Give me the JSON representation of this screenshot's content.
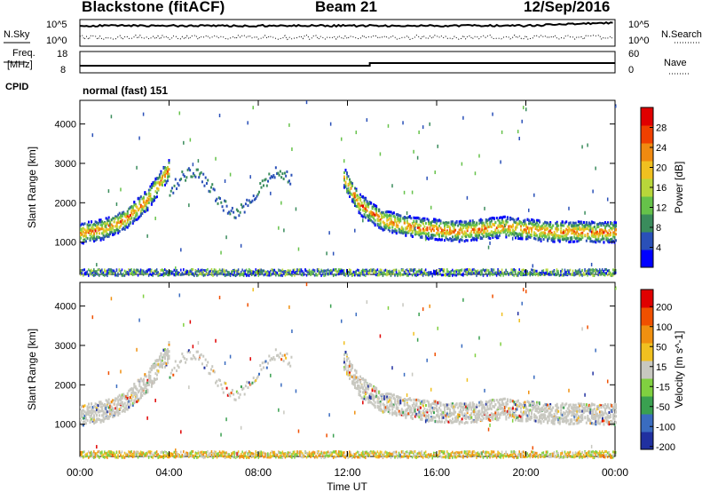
{
  "header": {
    "station": "Blackstone (fitACF)",
    "beam": "Beam 21",
    "date": "12/Sep/2016"
  },
  "noise_panel": {
    "left_label": "N.Sky",
    "right_label": "N.Search",
    "left_ticks": [
      "10^5",
      "10^0"
    ],
    "right_ticks": [
      "10^5",
      "10^0"
    ]
  },
  "freq_panel": {
    "left_label_line1": "Freq.",
    "left_label_line2": "[MHz]",
    "left_ticks": [
      "18",
      "8"
    ],
    "right_label": "Nave",
    "right_ticks": [
      "60",
      "0"
    ]
  },
  "cpid_panel": {
    "label": "CPID",
    "value": "normal (fast) 151"
  },
  "chart_data": [
    {
      "type": "heatmap",
      "panel": "power",
      "ylabel": "Slant Range [km]",
      "y_ticks": [
        "1000",
        "2000",
        "3000",
        "4000"
      ],
      "ylim": [
        180,
        4600
      ],
      "x_ticks": [
        "00:00",
        "04:00",
        "08:00",
        "12:00",
        "16:00",
        "20:00",
        "00:00"
      ],
      "xlim_hours": [
        0,
        24
      ],
      "colorbar_label": "Power [dB]",
      "colorbar_ticks": [
        "4",
        "8",
        "12",
        "16",
        "20",
        "24",
        "28"
      ],
      "colorbar_colors": [
        "#0000ff",
        "#2a50b8",
        "#3a8c5c",
        "#66c24a",
        "#b8d63a",
        "#f0c020",
        "#f08a10",
        "#f04000",
        "#e00000"
      ],
      "scatter_bands": [
        {
          "t": [
            0.0,
            1.0,
            2.0,
            3.0,
            3.5,
            4.0
          ],
          "range": [
            1250,
            1350,
            1600,
            2100,
            2500,
            2900
          ]
        },
        {
          "t": [
            11.8,
            12.5,
            13.5,
            15.0,
            17.0,
            19.0,
            21.0,
            24.0
          ],
          "range": [
            2700,
            2000,
            1600,
            1400,
            1300,
            1420,
            1300,
            1280
          ]
        }
      ]
    },
    {
      "type": "heatmap",
      "panel": "velocity",
      "ylabel": "Slant Range [km]",
      "y_ticks": [
        "1000",
        "2000",
        "3000",
        "4000"
      ],
      "ylim": [
        180,
        4600
      ],
      "x_ticks": [
        "00:00",
        "04:00",
        "08:00",
        "12:00",
        "16:00",
        "20:00",
        "00:00"
      ],
      "xlim_hours": [
        0,
        24
      ],
      "xlabel": "Time UT",
      "colorbar_label": "Velocity [m s^-1]",
      "colorbar_ticks": [
        "200",
        "100",
        "50",
        "15",
        "-15",
        "-50",
        "-100",
        "-200"
      ],
      "colorbar_colors": [
        "#2030a0",
        "#3a6cc0",
        "#3aa050",
        "#80d040",
        "#c8c8c0",
        "#f0c020",
        "#f09010",
        "#f05000",
        "#e00000"
      ]
    }
  ]
}
